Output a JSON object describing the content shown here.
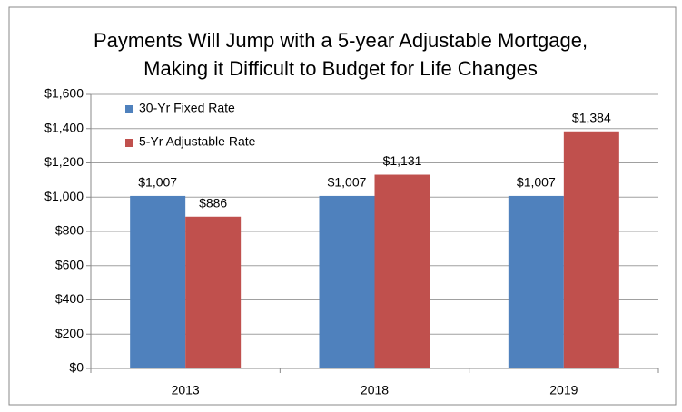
{
  "chart_data": {
    "type": "bar",
    "title": [
      "Payments Will Jump with a 5-year Adjustable Mortgage,",
      "Making it Difficult to Budget for Life Changes"
    ],
    "categories": [
      "2013",
      "2018",
      "2019"
    ],
    "series": [
      {
        "name": "30-Yr Fixed Rate",
        "color": "#4f81bd",
        "values": [
          1007,
          1007,
          1007
        ],
        "value_labels": [
          "$1,007",
          "$1,007",
          "$1,007"
        ]
      },
      {
        "name": "5-Yr Adjustable Rate",
        "color": "#c0504d",
        "values": [
          886,
          1131,
          1384
        ],
        "value_labels": [
          "$886",
          "$1,131",
          "$1,384"
        ]
      }
    ],
    "ylim": [
      0,
      1600
    ],
    "yticks": [
      {
        "value": 0,
        "label": "$0"
      },
      {
        "value": 200,
        "label": "$200"
      },
      {
        "value": 400,
        "label": "$400"
      },
      {
        "value": 600,
        "label": "$600"
      },
      {
        "value": 800,
        "label": "$800"
      },
      {
        "value": 1000,
        "label": "$1,000"
      },
      {
        "value": 1200,
        "label": "$1,200"
      },
      {
        "value": 1400,
        "label": "$1,400"
      },
      {
        "value": 1600,
        "label": "$1,600"
      }
    ],
    "grid": true,
    "legend": "top-left"
  }
}
